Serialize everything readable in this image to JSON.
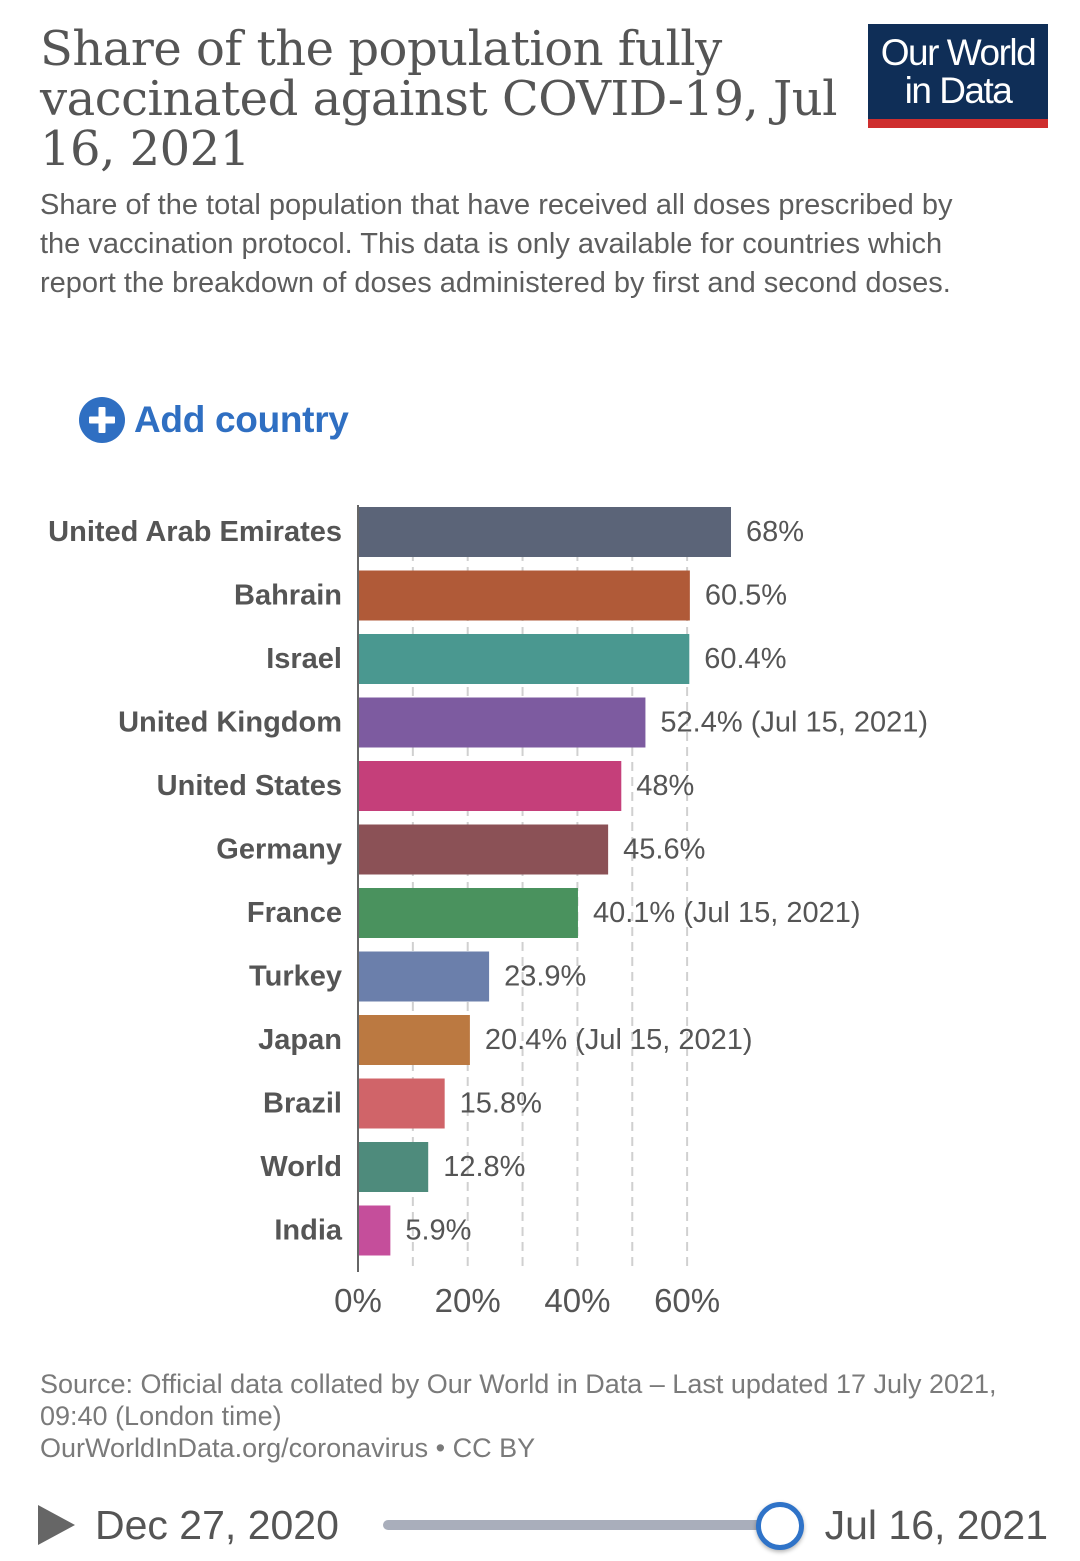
{
  "header": {
    "title": "Share of the population fully vaccinated against COVID-19, Jul 16, 2021",
    "logo_line1": "Our World",
    "logo_line2": "in Data",
    "subtitle": "Share of the total population that have received all doses prescribed by the vaccination protocol. This data is only available for countries which report the breakdown of doses administered by first and second doses."
  },
  "controls": {
    "add_country_label": "Add country"
  },
  "footer": {
    "source": "Source: Official data collated by Our World in Data – Last updated 17 July 2021, 09:40 (London time)",
    "link": "OurWorldInData.org/coronavirus • CC BY"
  },
  "timeline": {
    "start_label": "Dec 27, 2020",
    "end_label": "Jul 16, 2021",
    "position": 1.0
  },
  "chart_data": {
    "type": "bar",
    "orientation": "horizontal",
    "title": "Share of the population fully vaccinated against COVID-19, Jul 16, 2021",
    "xlabel": "",
    "ylabel": "",
    "xlim": [
      0,
      68
    ],
    "x_ticks": [
      0,
      10,
      20,
      30,
      40,
      50,
      60
    ],
    "x_tick_labels": [
      "0%",
      "20%",
      "40%",
      "60%"
    ],
    "x_tick_label_values": [
      0,
      20,
      40,
      60
    ],
    "grid": "dashed vertical",
    "categories": [
      "United Arab Emirates",
      "Bahrain",
      "Israel",
      "United Kingdom",
      "United States",
      "Germany",
      "France",
      "Turkey",
      "Japan",
      "Brazil",
      "World",
      "India"
    ],
    "values": [
      68,
      60.5,
      60.4,
      52.4,
      48,
      45.6,
      40.1,
      23.9,
      20.4,
      15.8,
      12.8,
      5.9
    ],
    "value_labels": [
      "68%",
      "60.5%",
      "60.4%",
      "52.4% (Jul 15, 2021)",
      "48%",
      "45.6%",
      "40.1% (Jul 15, 2021)",
      "23.9%",
      "20.4% (Jul 15, 2021)",
      "15.8%",
      "12.8%",
      "5.9%"
    ],
    "colors": [
      "#5b6478",
      "#b05a38",
      "#4a9890",
      "#7d5ba0",
      "#c53f7a",
      "#8b5156",
      "#4a925e",
      "#6b7fab",
      "#bb7941",
      "#d06469",
      "#4e8b7c",
      "#c54e9b"
    ]
  },
  "theme": {
    "grid_color": "#d0d0d0",
    "axis_color": "#666666",
    "label_color": "#555555"
  }
}
